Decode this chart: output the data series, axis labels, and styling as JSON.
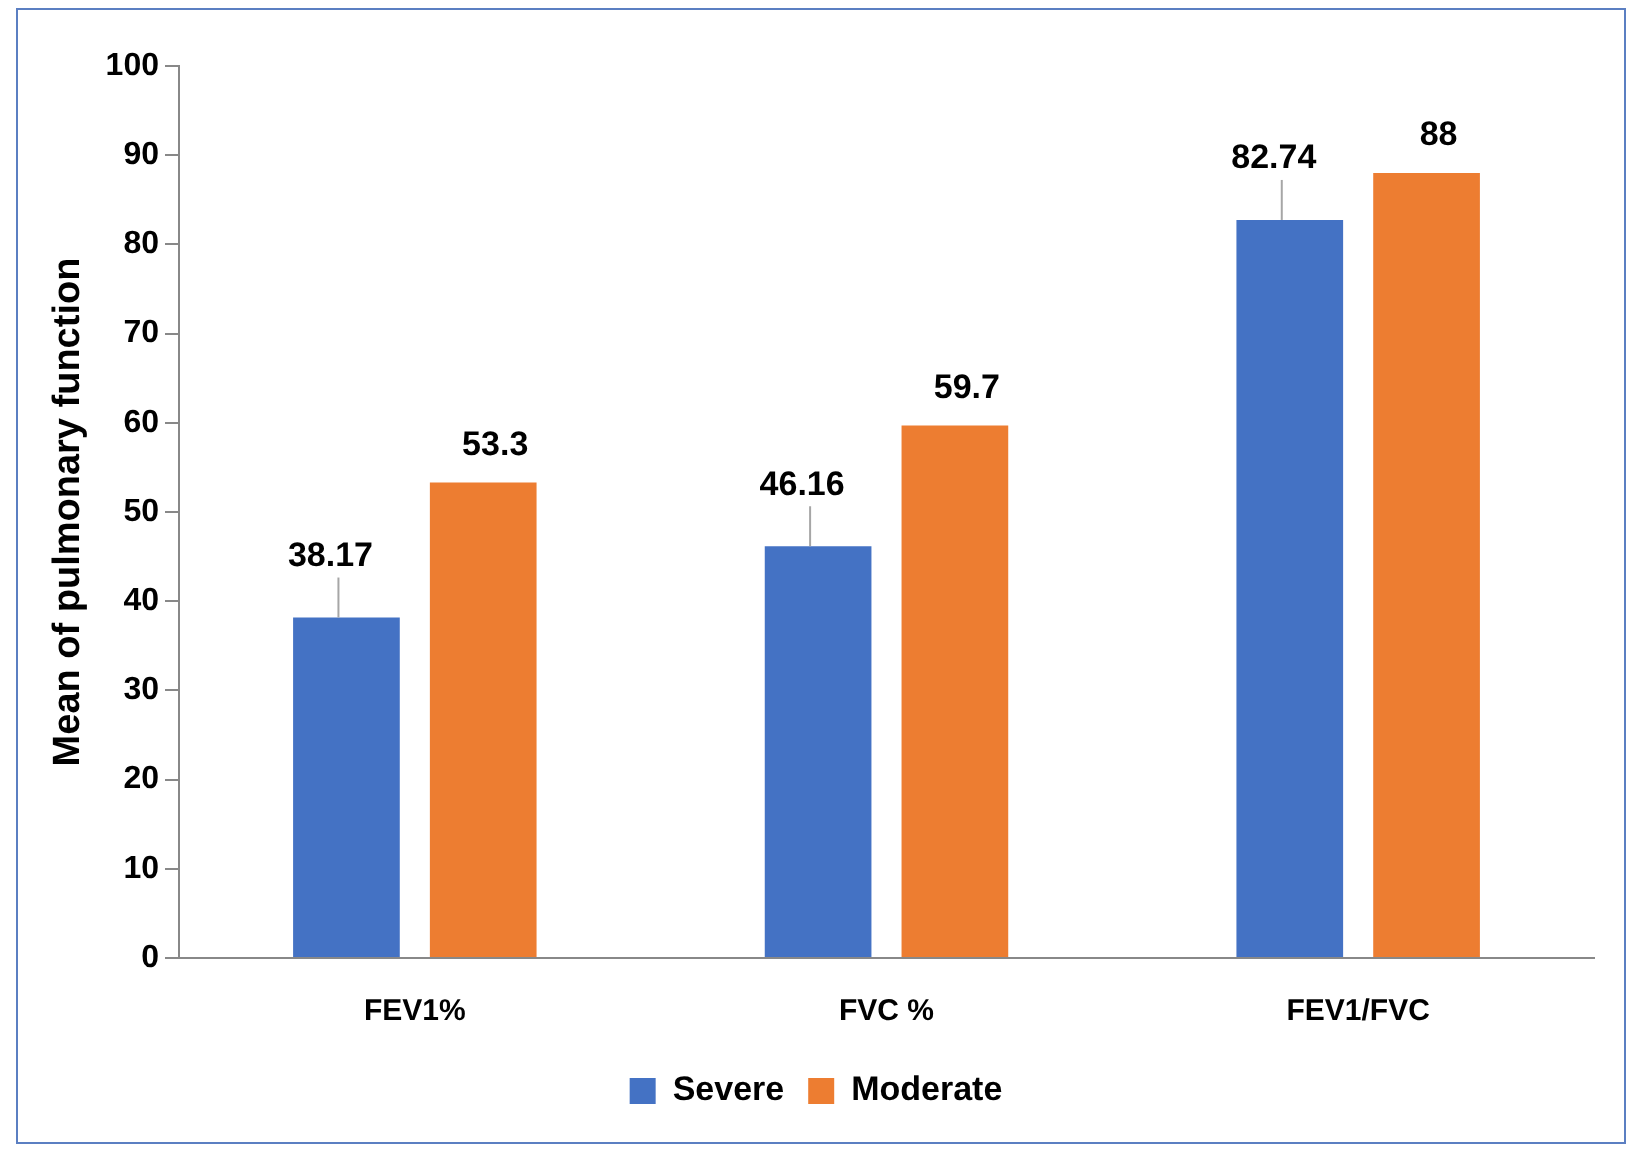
{
  "chart_data": {
    "type": "bar",
    "ylabel": "Mean of pulmonary function",
    "categories": [
      "FEV1%",
      "FVC %",
      "FEV1/FVC"
    ],
    "series": [
      {
        "name": "Severe",
        "color": "#4472c4",
        "values": [
          38.17,
          46.16,
          82.74
        ]
      },
      {
        "name": "Moderate",
        "color": "#ed7d31",
        "values": [
          53.3,
          59.7,
          88
        ]
      }
    ],
    "ylim": [
      0,
      100
    ],
    "yticks": [
      0,
      10,
      20,
      30,
      40,
      50,
      60,
      70,
      80,
      90,
      100
    ],
    "grid": false,
    "legend": "bottom",
    "data_labels": true
  }
}
